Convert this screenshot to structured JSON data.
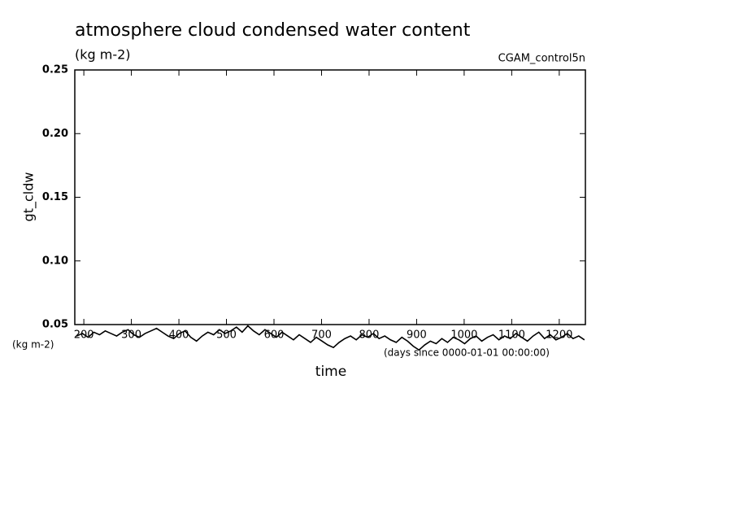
{
  "chart_data": {
    "type": "line",
    "title": "atmosphere cloud condensed water content",
    "subtitle": "(kg m-2)",
    "annotation": "CGAM_control5n",
    "y_label": "gt_cldw",
    "y_units": "(kg m-2)",
    "x_label": "time",
    "x_units": "(days since 0000-01-01 00:00:00)",
    "xlim": [
      181,
      1255
    ],
    "xticks": [
      200,
      300,
      400,
      500,
      600,
      700,
      800,
      900,
      1000,
      1100,
      1200
    ],
    "ylim": [
      0.05,
      0.25
    ],
    "yticks": [
      0.05,
      {
        "value": 0.1,
        "label": "0.10"
      },
      0.15,
      {
        "value": 0.2,
        "label": "0.20"
      },
      0.25
    ],
    "color": "#000000",
    "x": [
      185,
      197,
      209,
      221,
      233,
      245,
      257,
      269,
      281,
      293,
      305,
      317,
      329,
      341,
      353,
      365,
      377,
      389,
      401,
      413,
      425,
      437,
      449,
      461,
      473,
      485,
      497,
      509,
      521,
      533,
      545,
      557,
      569,
      581,
      593,
      605,
      617,
      629,
      641,
      653,
      665,
      677,
      689,
      701,
      713,
      725,
      737,
      749,
      761,
      773,
      785,
      797,
      809,
      821,
      833,
      845,
      857,
      869,
      881,
      893,
      905,
      917,
      929,
      941,
      953,
      965,
      977,
      989,
      1001,
      1013,
      1025,
      1037,
      1049,
      1061,
      1073,
      1085,
      1097,
      1109,
      1121,
      1133,
      1145,
      1157,
      1169,
      1181,
      1193,
      1205,
      1217,
      1229,
      1241,
      1253
    ],
    "values": [
      0.041,
      0.043,
      0.04,
      0.044,
      0.042,
      0.045,
      0.043,
      0.041,
      0.044,
      0.046,
      0.042,
      0.04,
      0.043,
      0.045,
      0.047,
      0.044,
      0.041,
      0.039,
      0.043,
      0.045,
      0.04,
      0.037,
      0.041,
      0.044,
      0.042,
      0.046,
      0.043,
      0.045,
      0.048,
      0.044,
      0.049,
      0.045,
      0.042,
      0.046,
      0.043,
      0.04,
      0.044,
      0.041,
      0.038,
      0.042,
      0.039,
      0.036,
      0.04,
      0.037,
      0.034,
      0.032,
      0.036,
      0.039,
      0.041,
      0.038,
      0.042,
      0.04,
      0.043,
      0.039,
      0.041,
      0.038,
      0.036,
      0.04,
      0.037,
      0.033,
      0.03,
      0.034,
      0.037,
      0.035,
      0.039,
      0.036,
      0.04,
      0.038,
      0.035,
      0.039,
      0.041,
      0.037,
      0.04,
      0.042,
      0.038,
      0.041,
      0.039,
      0.043,
      0.04,
      0.037,
      0.041,
      0.044,
      0.039,
      0.042,
      0.038,
      0.04,
      0.043,
      0.039,
      0.041,
      0.038
    ]
  }
}
